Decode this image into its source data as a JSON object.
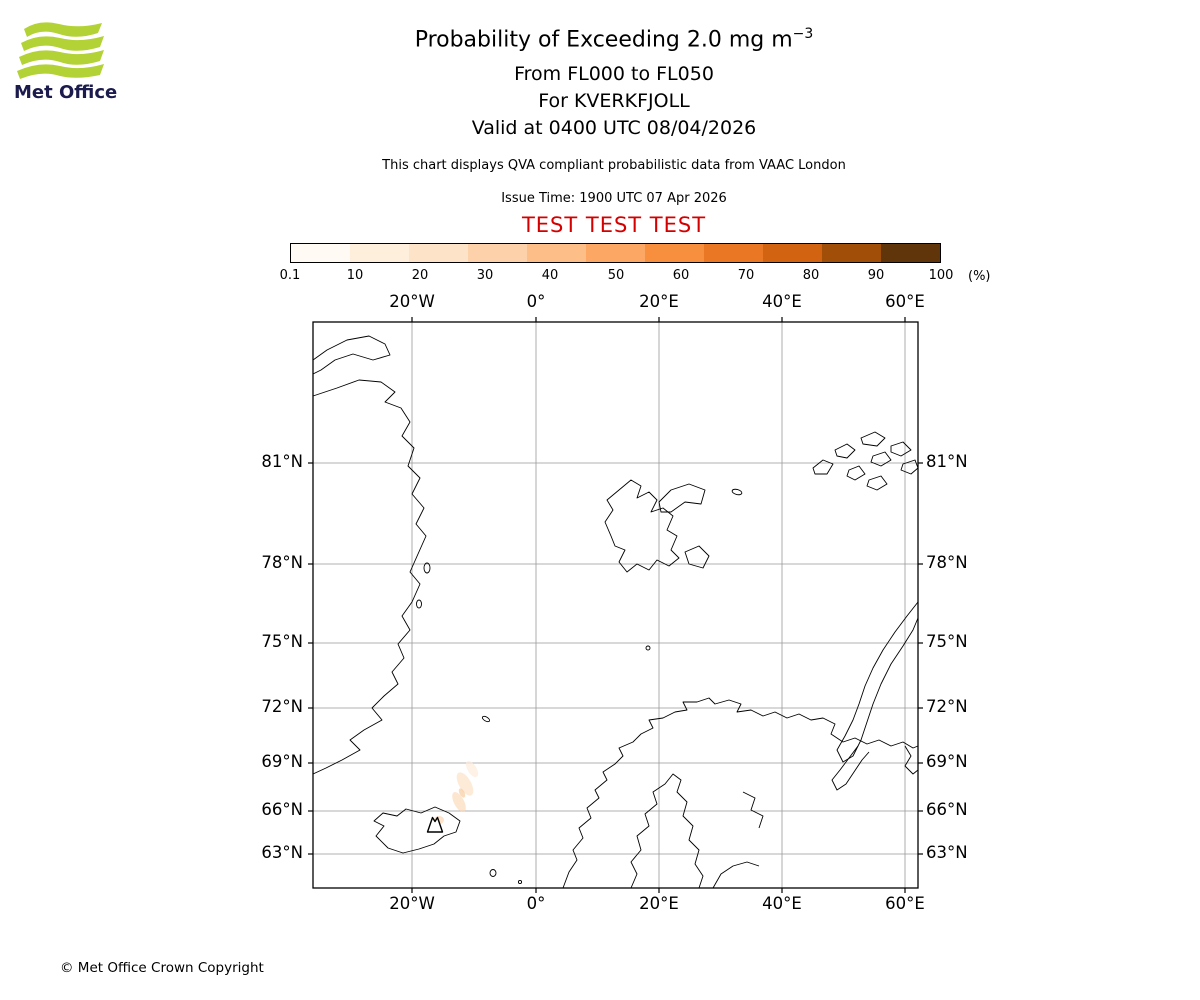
{
  "branding": {
    "logo_text": "Met Office",
    "logo_green": "#b2d235",
    "logo_text_color": "#1b1b4d"
  },
  "header": {
    "title": "Probability of Exceeding 2.0 mg m",
    "title_exponent": "−3",
    "flight_levels": "From FL000 to FL050",
    "volcano": "For KVERKFJOLL",
    "valid_time": "Valid at 0400 UTC 08/04/2026",
    "qva_note": "This chart displays QVA compliant probabilistic data from VAAC London",
    "issue_time": "Issue Time: 1900 UTC 07 Apr 2026",
    "test_banner": "TEST TEST TEST",
    "test_color": "#d40000"
  },
  "colorbar": {
    "unit_label": "(%)",
    "tick_labels": [
      "0.1",
      "10",
      "20",
      "30",
      "40",
      "50",
      "60",
      "70",
      "80",
      "90",
      "100"
    ],
    "colors": [
      "#fffaf3",
      "#feeedc",
      "#fde3c8",
      "#fdd2ab",
      "#fdbe88",
      "#fca763",
      "#f78f3f",
      "#ea7723",
      "#d26310",
      "#a14e09",
      "#60350a"
    ]
  },
  "map": {
    "x_tick_labels": [
      "20°W",
      "0°",
      "20°E",
      "40°E",
      "60°E"
    ],
    "y_tick_labels": [
      "81°N",
      "78°N",
      "75°N",
      "72°N",
      "69°N",
      "66°N",
      "63°N"
    ]
  },
  "footer": {
    "copyright": "© Met Office Crown Copyright"
  }
}
